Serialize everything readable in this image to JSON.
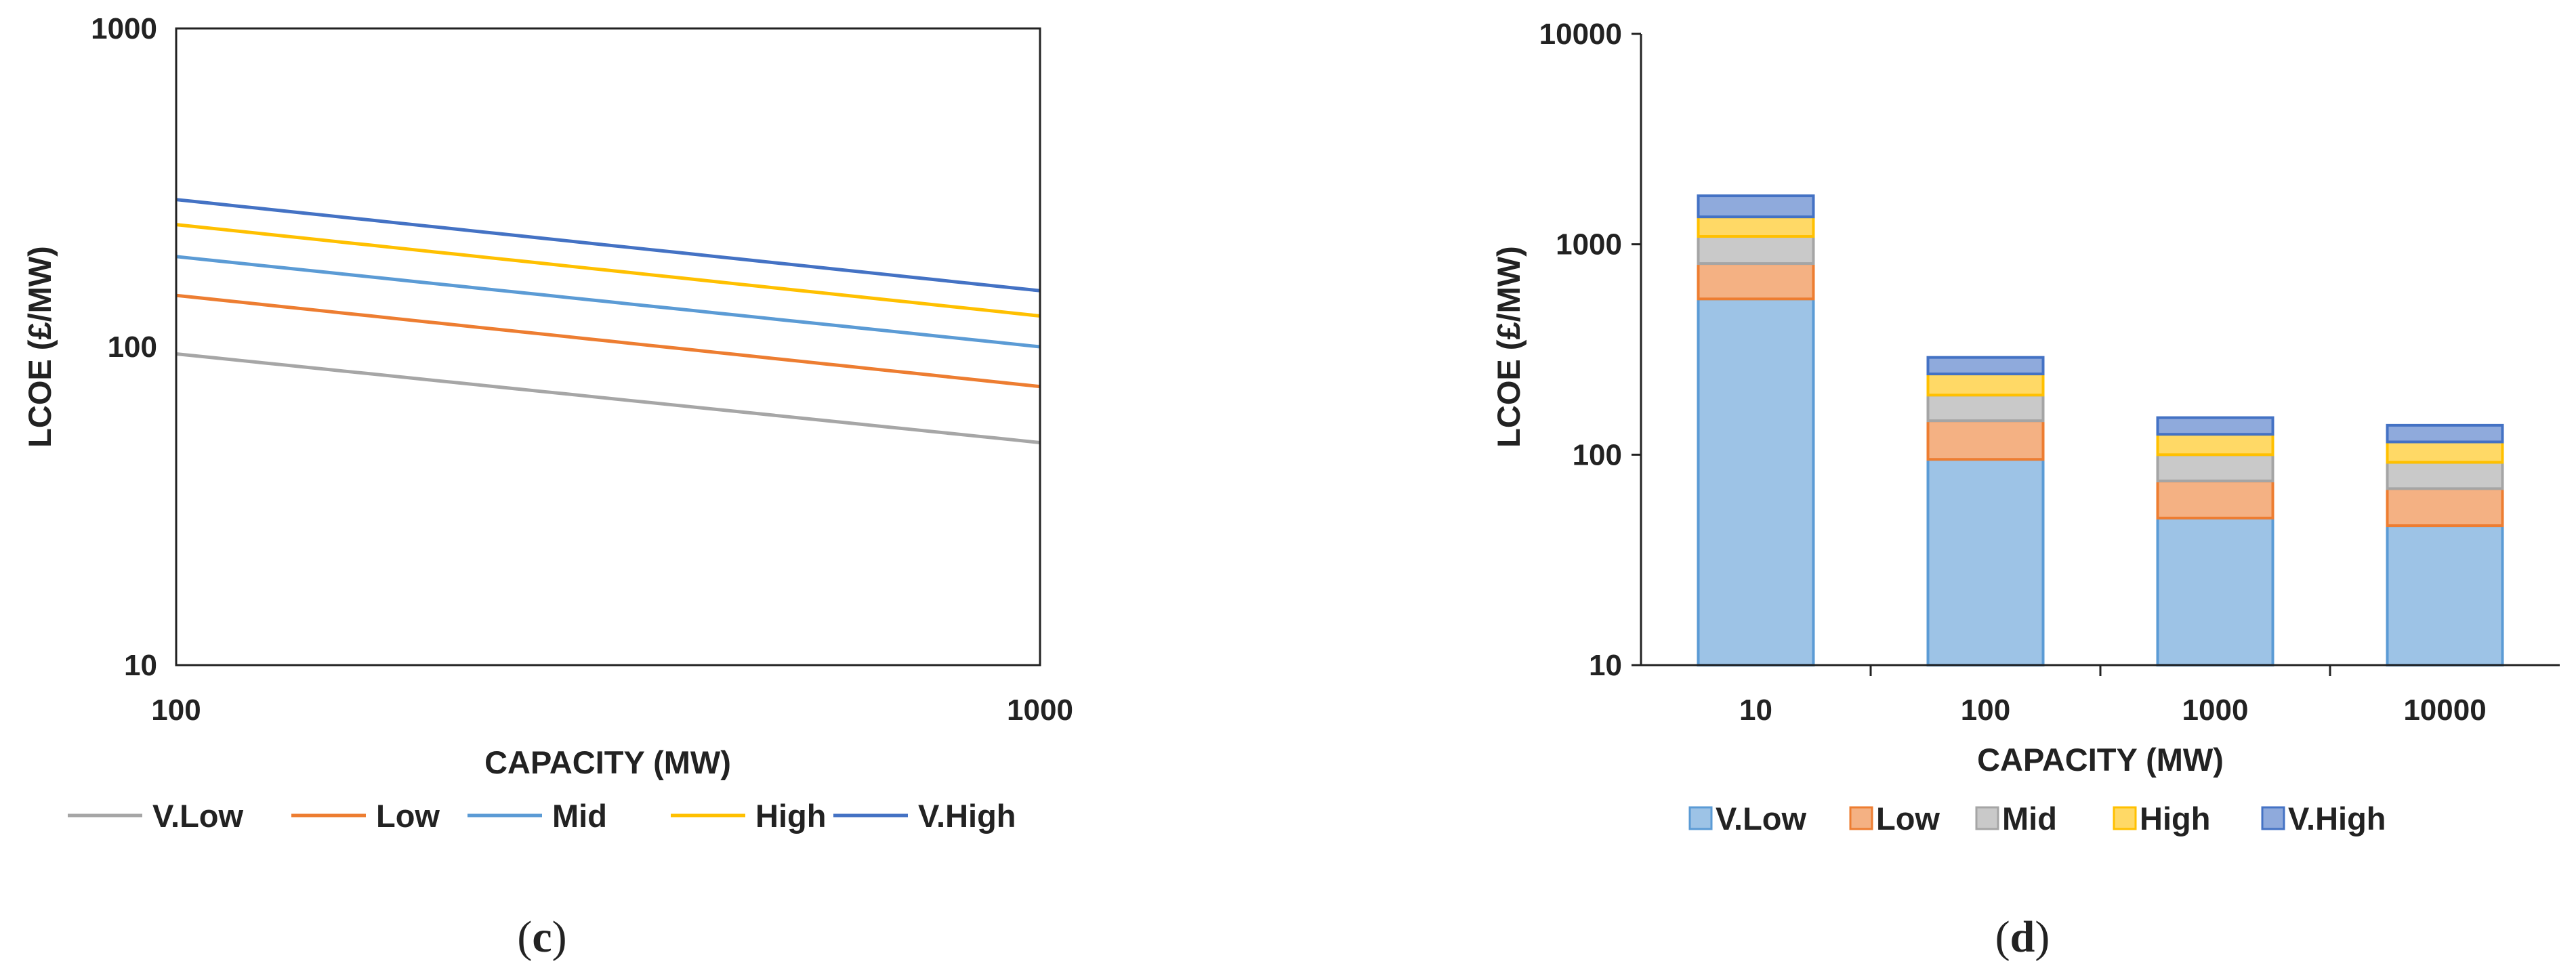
{
  "chart_data": [
    {
      "type": "line",
      "panel": "c",
      "caption_letter": "c",
      "xlabel": "CAPACITY (MW)",
      "ylabel": "LCOE (£/MW)",
      "xscale": "log",
      "yscale": "log",
      "xlim": [
        100,
        1000
      ],
      "ylim": [
        10,
        1000
      ],
      "x_ticks": [
        "100",
        "1000"
      ],
      "y_ticks": [
        "10",
        "100",
        "1000"
      ],
      "legend_position": "bottom",
      "series": [
        {
          "name": "V.Low",
          "color": "#A6A6A6",
          "points": [
            [
              100,
              95
            ],
            [
              1000,
              50
            ]
          ]
        },
        {
          "name": "Low",
          "color": "#ED7D31",
          "points": [
            [
              100,
              145
            ],
            [
              1000,
              75
            ]
          ]
        },
        {
          "name": "Mid",
          "color": "#5B9BD5",
          "points": [
            [
              100,
              192
            ],
            [
              1000,
              100
            ]
          ]
        },
        {
          "name": "High",
          "color": "#FFC000",
          "points": [
            [
              100,
              242
            ],
            [
              1000,
              125
            ]
          ]
        },
        {
          "name": "V.High",
          "color": "#4472C4",
          "points": [
            [
              100,
              290
            ],
            [
              1000,
              150
            ]
          ]
        }
      ]
    },
    {
      "type": "bar",
      "stacked": true,
      "panel": "d",
      "caption_letter": "d",
      "xlabel": "CAPACITY (MW)",
      "ylabel": "LCOE (£/MW)",
      "yscale": "log",
      "ylim": [
        10,
        10000
      ],
      "y_ticks": [
        "10",
        "100",
        "1000",
        "10000"
      ],
      "categories": [
        "10",
        "100",
        "1000",
        "10000"
      ],
      "legend_position": "bottom",
      "series": [
        {
          "name": "V.Low",
          "fill": "#9DC3E6",
          "stroke": "#5B9BD5",
          "values": [
            550,
            95,
            50,
            46
          ]
        },
        {
          "name": "Low",
          "fill": "#F4B183",
          "stroke": "#ED7D31",
          "values": [
            810,
            145,
            75,
            69
          ]
        },
        {
          "name": "Mid",
          "fill": "#C9C9C9",
          "stroke": "#A5A5A5",
          "values": [
            1090,
            192,
            100,
            92
          ]
        },
        {
          "name": "High",
          "fill": "#FFD966",
          "stroke": "#FFC000",
          "values": [
            1350,
            242,
            125,
            115
          ]
        },
        {
          "name": "V.High",
          "fill": "#8FAADC",
          "stroke": "#4472C4",
          "values": [
            1700,
            290,
            150,
            138
          ]
        }
      ]
    }
  ]
}
